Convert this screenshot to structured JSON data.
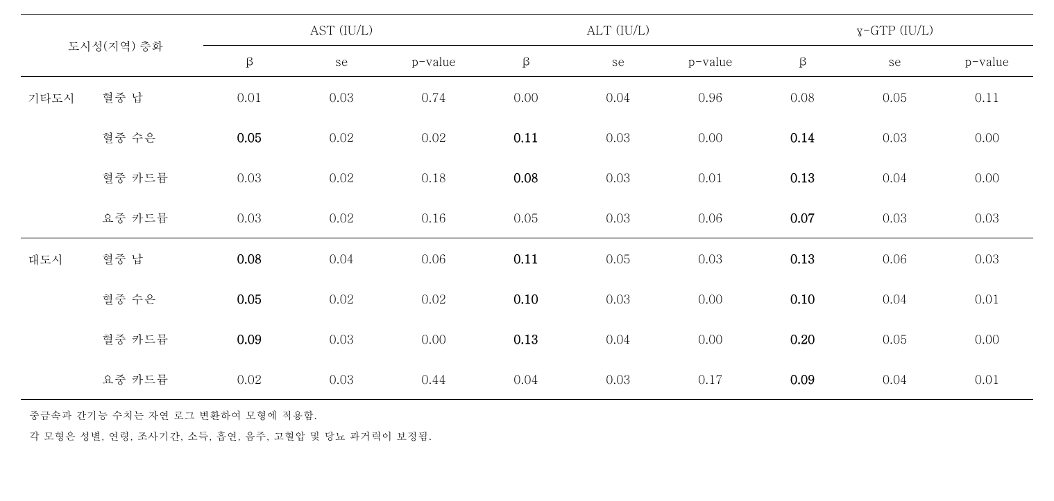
{
  "colors": {
    "text": "#000000",
    "background": "#ffffff",
    "border": "#000000"
  },
  "typography": {
    "base_fontsize_pt": 13,
    "footnote_fontsize_pt": 11,
    "font_family": "Batang/Malgun Gothic serif"
  },
  "table": {
    "type": "table",
    "strata_header": "도시성(지역) 층화",
    "column_groups": [
      {
        "label": "AST (IU/L)",
        "subcols": [
          "β",
          "se",
          "p-value"
        ]
      },
      {
        "label": "ALT (IU/L)",
        "subcols": [
          "β",
          "se",
          "p-value"
        ]
      },
      {
        "label": "γ-GTP (IU/L)",
        "subcols": [
          "β",
          "se",
          "p-value"
        ]
      }
    ],
    "strata": [
      {
        "name": "기타도시",
        "rows": [
          {
            "metal": "혈중 납",
            "values": [
              "0.01",
              "0.03",
              "0.74",
              "0.00",
              "0.04",
              "0.96",
              "0.08",
              "0.05",
              "0.11"
            ],
            "bold": [
              false,
              false,
              false,
              false,
              false,
              false,
              false,
              false,
              false
            ]
          },
          {
            "metal": "혈중 수은",
            "values": [
              "0.05",
              "0.02",
              "0.02",
              "0.11",
              "0.03",
              "0.00",
              "0.14",
              "0.03",
              "0.00"
            ],
            "bold": [
              true,
              false,
              false,
              true,
              false,
              false,
              true,
              false,
              false
            ]
          },
          {
            "metal": "혈중 카드뮴",
            "values": [
              "0.03",
              "0.02",
              "0.18",
              "0.08",
              "0.03",
              "0.01",
              "0.13",
              "0.04",
              "0.00"
            ],
            "bold": [
              false,
              false,
              false,
              true,
              false,
              false,
              true,
              false,
              false
            ]
          },
          {
            "metal": "요중 카드뮴",
            "values": [
              "0.03",
              "0.02",
              "0.16",
              "0.05",
              "0.03",
              "0.06",
              "0.07",
              "0.03",
              "0.03"
            ],
            "bold": [
              false,
              false,
              false,
              false,
              false,
              false,
              true,
              false,
              false
            ]
          }
        ]
      },
      {
        "name": "대도시",
        "rows": [
          {
            "metal": "혈중 납",
            "values": [
              "0.08",
              "0.04",
              "0.06",
              "0.11",
              "0.05",
              "0.03",
              "0.13",
              "0.06",
              "0.03"
            ],
            "bold": [
              true,
              false,
              false,
              true,
              false,
              false,
              true,
              false,
              false
            ]
          },
          {
            "metal": "혈중 수은",
            "values": [
              "0.05",
              "0.02",
              "0.02",
              "0.10",
              "0.03",
              "0.00",
              "0.10",
              "0.04",
              "0.01"
            ],
            "bold": [
              true,
              false,
              false,
              true,
              false,
              false,
              true,
              false,
              false
            ]
          },
          {
            "metal": "혈중 카드뮴",
            "values": [
              "0.09",
              "0.03",
              "0.00",
              "0.13",
              "0.04",
              "0.00",
              "0.20",
              "0.05",
              "0.00"
            ],
            "bold": [
              true,
              false,
              false,
              true,
              false,
              false,
              true,
              false,
              false
            ]
          },
          {
            "metal": "요중 카드뮴",
            "values": [
              "0.02",
              "0.03",
              "0.44",
              "0.04",
              "0.03",
              "0.17",
              "0.09",
              "0.04",
              "0.01"
            ],
            "bold": [
              false,
              false,
              false,
              false,
              false,
              false,
              true,
              false,
              false
            ]
          }
        ]
      }
    ]
  },
  "footnotes": [
    "중금속과 간기능 수치는 자연 로그 변환하여 모형에 적용함.",
    "각 모형은 성별, 연령, 조사기간, 소득, 흡연, 음주, 고혈압 및 당뇨 과거력이 보정됨."
  ]
}
